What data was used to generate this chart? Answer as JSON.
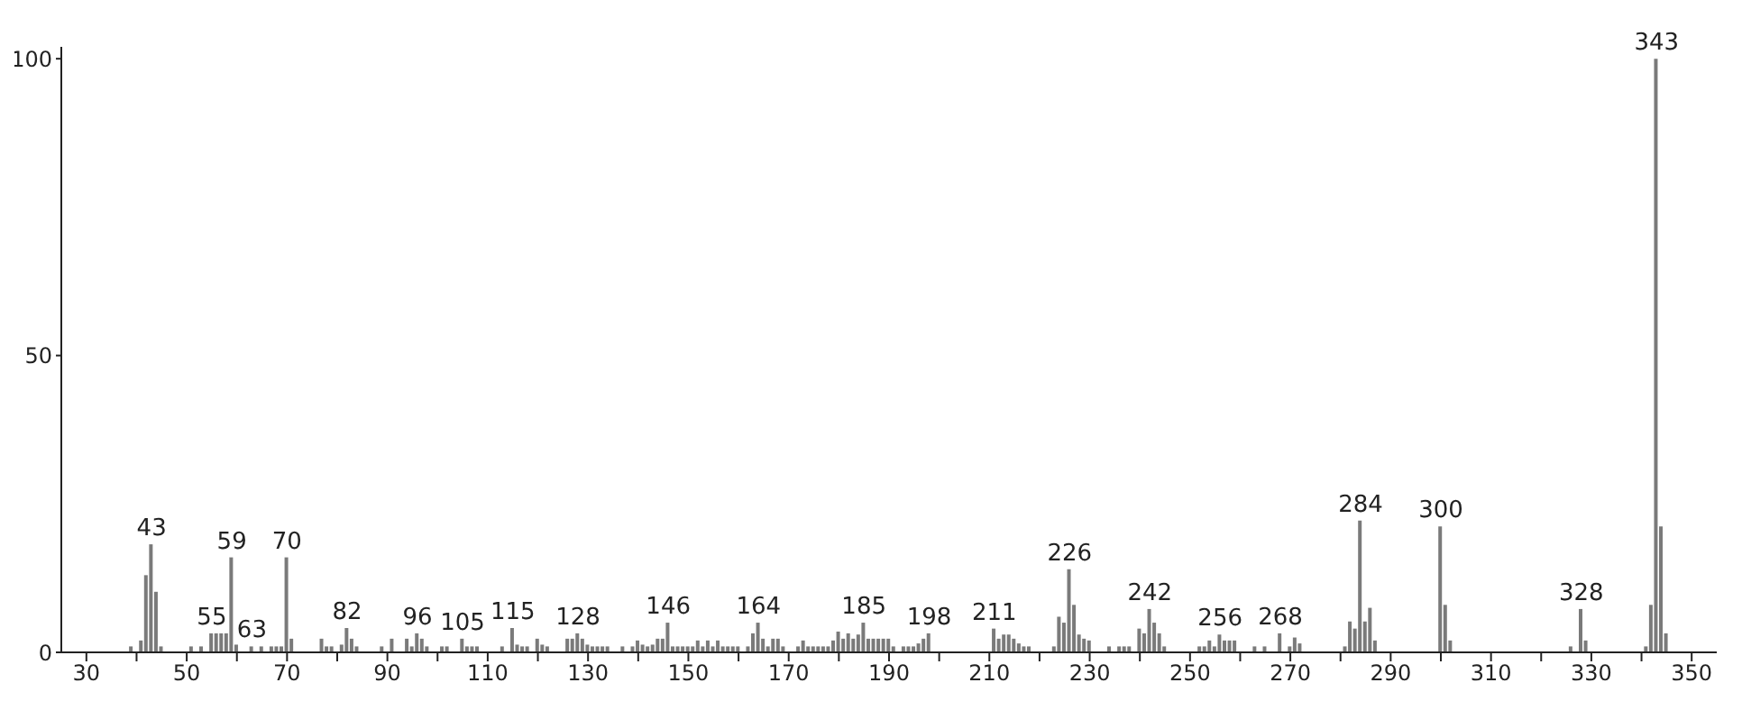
{
  "chart_data": {
    "type": "bar",
    "x": [
      39,
      41,
      42,
      43,
      44,
      45,
      51,
      53,
      55,
      56,
      57,
      58,
      59,
      60,
      63,
      65,
      67,
      68,
      69,
      70,
      71,
      77,
      78,
      79,
      81,
      82,
      83,
      84,
      89,
      91,
      94,
      95,
      96,
      97,
      98,
      101,
      102,
      105,
      106,
      107,
      108,
      113,
      115,
      116,
      117,
      118,
      120,
      121,
      122,
      126,
      127,
      128,
      129,
      130,
      131,
      132,
      133,
      134,
      137,
      139,
      140,
      141,
      142,
      143,
      144,
      145,
      146,
      147,
      148,
      149,
      150,
      151,
      152,
      153,
      154,
      155,
      156,
      157,
      158,
      159,
      160,
      162,
      163,
      164,
      165,
      166,
      167,
      168,
      169,
      172,
      173,
      174,
      175,
      176,
      177,
      178,
      179,
      180,
      181,
      182,
      183,
      184,
      185,
      186,
      187,
      188,
      189,
      190,
      191,
      193,
      194,
      195,
      196,
      197,
      198,
      211,
      212,
      213,
      214,
      215,
      216,
      217,
      218,
      223,
      224,
      225,
      226,
      227,
      228,
      229,
      230,
      234,
      236,
      237,
      238,
      240,
      241,
      242,
      243,
      244,
      245,
      252,
      253,
      254,
      255,
      256,
      257,
      258,
      259,
      263,
      265,
      268,
      270,
      271,
      272,
      281,
      282,
      283,
      284,
      285,
      286,
      287,
      300,
      301,
      302,
      326,
      328,
      329,
      341,
      342,
      343,
      344,
      345
    ],
    "values": [
      1,
      2,
      13,
      18.2,
      10.2,
      1,
      1,
      1,
      3.2,
      3.2,
      3.2,
      3.2,
      16,
      1.3,
      1,
      1,
      1,
      1,
      1,
      16,
      2.3,
      2.3,
      1,
      1,
      1.3,
      4.1,
      2.3,
      1,
      1,
      2.3,
      2.3,
      1,
      3.2,
      2.3,
      1,
      1,
      1,
      2.3,
      1,
      1,
      1,
      1,
      4.1,
      1.3,
      1,
      1,
      2.3,
      1.3,
      1,
      2.3,
      2.3,
      3.2,
      2.3,
      1.3,
      1,
      1,
      1,
      1,
      1,
      1,
      2,
      1.3,
      1,
      1.3,
      2.3,
      2.3,
      5,
      1,
      1,
      1,
      1,
      1,
      2,
      1,
      2,
      1,
      2,
      1,
      1,
      1,
      1,
      1,
      3.2,
      5,
      2.3,
      1,
      2.3,
      2.3,
      1,
      1,
      2,
      1,
      1,
      1,
      1,
      1,
      2,
      3.5,
      2.3,
      3.2,
      2.3,
      3,
      5,
      2.3,
      2.3,
      2.3,
      2.3,
      2.3,
      1,
      1,
      1,
      1,
      1.5,
      2.3,
      3.2,
      4,
      2.3,
      3,
      3,
      2.3,
      1.5,
      1,
      1,
      1,
      6,
      5,
      14,
      8,
      3,
      2.3,
      2,
      1,
      1,
      1,
      1,
      4,
      3.2,
      7.3,
      5,
      3.2,
      1,
      1,
      1,
      2,
      1,
      3,
      2,
      2,
      2,
      1,
      1,
      3.2,
      1,
      2.5,
      1.5,
      1,
      5.2,
      4,
      22.2,
      5.2,
      7.5,
      2,
      21.2,
      8,
      2,
      1,
      7.3,
      2,
      1,
      8,
      100,
      21.2,
      3.2
    ],
    "color": "#7a7a7a",
    "xlim": [
      25,
      355
    ],
    "xticks": [
      30,
      {
        "value": 40,
        "label": null
      },
      50,
      {
        "value": 60,
        "label": null
      },
      70,
      {
        "value": 80,
        "label": null
      },
      90,
      {
        "value": 100,
        "label": null
      },
      110,
      {
        "value": 120,
        "label": null
      },
      130,
      {
        "value": 140,
        "label": null
      },
      150,
      {
        "value": 160,
        "label": null
      },
      170,
      {
        "value": 180,
        "label": null
      },
      190,
      {
        "value": 200,
        "label": null
      },
      210,
      {
        "value": 220,
        "label": null
      },
      230,
      {
        "value": 240,
        "label": null
      },
      250,
      {
        "value": 260,
        "label": null
      },
      270,
      {
        "value": 280,
        "label": null
      },
      290,
      {
        "value": 300,
        "label": null
      },
      310,
      {
        "value": 320,
        "label": null
      },
      330,
      {
        "value": 340,
        "label": null
      },
      350
    ],
    "ylim": [
      0,
      102
    ],
    "yticks": [
      0,
      50,
      100
    ],
    "annotations": [
      {
        "text": "43",
        "x": 43,
        "y": 18.2
      },
      {
        "text": "55",
        "x": 55,
        "y": 3.2
      },
      {
        "text": "59",
        "x": 59,
        "y": 16
      },
      {
        "text": "63",
        "x": 63,
        "y": 1
      },
      {
        "text": "70",
        "x": 70,
        "y": 16
      },
      {
        "text": "82",
        "x": 82,
        "y": 4.1
      },
      {
        "text": "96",
        "x": 96,
        "y": 3.2
      },
      {
        "text": "105",
        "x": 105,
        "y": 2.3
      },
      {
        "text": "115",
        "x": 115,
        "y": 4.1
      },
      {
        "text": "128",
        "x": 128,
        "y": 3.2
      },
      {
        "text": "146",
        "x": 146,
        "y": 5
      },
      {
        "text": "164",
        "x": 164,
        "y": 5
      },
      {
        "text": "185",
        "x": 185,
        "y": 5
      },
      {
        "text": "198",
        "x": 198,
        "y": 3.2
      },
      {
        "text": "211",
        "x": 211,
        "y": 4
      },
      {
        "text": "226",
        "x": 226,
        "y": 14
      },
      {
        "text": "242",
        "x": 242,
        "y": 7.3
      },
      {
        "text": "256",
        "x": 256,
        "y": 3
      },
      {
        "text": "268",
        "x": 268,
        "y": 3.2
      },
      {
        "text": "284",
        "x": 284,
        "y": 22.2
      },
      {
        "text": "300",
        "x": 300,
        "y": 21.2
      },
      {
        "text": "328",
        "x": 328,
        "y": 7.3
      },
      {
        "text": "343",
        "x": 343,
        "y": 100
      }
    ]
  }
}
